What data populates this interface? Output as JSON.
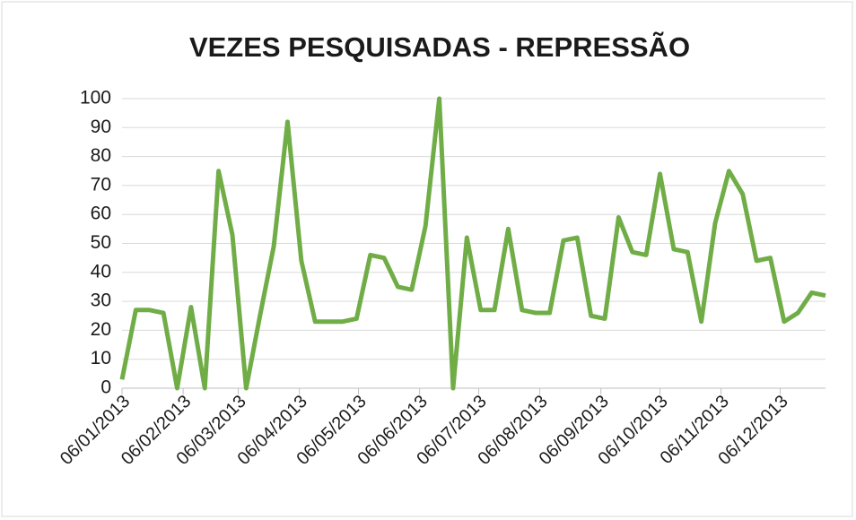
{
  "chart_data": {
    "type": "line",
    "title": "VEZES PESQUISADAS  - REPRESSÃO",
    "x": [
      "2013-01-06",
      "2013-01-13",
      "2013-01-20",
      "2013-01-27",
      "2013-02-03",
      "2013-02-10",
      "2013-02-17",
      "2013-02-24",
      "2013-03-03",
      "2013-03-10",
      "2013-03-17",
      "2013-03-24",
      "2013-03-31",
      "2013-04-07",
      "2013-04-14",
      "2013-04-21",
      "2013-04-28",
      "2013-05-05",
      "2013-05-12",
      "2013-05-19",
      "2013-05-26",
      "2013-06-02",
      "2013-06-09",
      "2013-06-16",
      "2013-06-23",
      "2013-06-30",
      "2013-07-07",
      "2013-07-14",
      "2013-07-21",
      "2013-07-28",
      "2013-08-04",
      "2013-08-11",
      "2013-08-18",
      "2013-08-25",
      "2013-09-01",
      "2013-09-08",
      "2013-09-15",
      "2013-09-22",
      "2013-09-29",
      "2013-10-06",
      "2013-10-13",
      "2013-10-20",
      "2013-10-27",
      "2013-11-03",
      "2013-11-10",
      "2013-11-17",
      "2013-11-24",
      "2013-12-01",
      "2013-12-08",
      "2013-12-15",
      "2013-12-22",
      "2013-12-29"
    ],
    "series": [
      {
        "name": "Repressão",
        "color": "#70ad47",
        "values": [
          3,
          27,
          27,
          26,
          0,
          28,
          0,
          75,
          53,
          0,
          25,
          49,
          92,
          44,
          23,
          23,
          23,
          24,
          46,
          45,
          35,
          34,
          56,
          100,
          0,
          52,
          27,
          27,
          55,
          27,
          26,
          26,
          51,
          52,
          25,
          24,
          59,
          47,
          46,
          74,
          48,
          47,
          23,
          57,
          75,
          67,
          44,
          45,
          23,
          26,
          33,
          32
        ]
      }
    ],
    "xlim": [
      "2013-01-06",
      "2013-12-29"
    ],
    "xticks": [
      {
        "value": "2013-01-06",
        "label": "06/01/2013"
      },
      {
        "value": "2013-02-06",
        "label": "06/02/2013"
      },
      {
        "value": "2013-03-06",
        "label": "06/03/2013"
      },
      {
        "value": "2013-04-06",
        "label": "06/04/2013"
      },
      {
        "value": "2013-05-06",
        "label": "06/05/2013"
      },
      {
        "value": "2013-06-06",
        "label": "06/06/2013"
      },
      {
        "value": "2013-07-06",
        "label": "06/07/2013"
      },
      {
        "value": "2013-08-06",
        "label": "06/08/2013"
      },
      {
        "value": "2013-09-06",
        "label": "06/09/2013"
      },
      {
        "value": "2013-10-06",
        "label": "06/10/2013"
      },
      {
        "value": "2013-11-06",
        "label": "06/11/2013"
      },
      {
        "value": "2013-12-06",
        "label": "06/12/2013"
      }
    ],
    "ylim": [
      0,
      100
    ],
    "yticks": [
      0,
      10,
      20,
      30,
      40,
      50,
      60,
      70,
      80,
      90,
      100
    ],
    "grid": true
  }
}
